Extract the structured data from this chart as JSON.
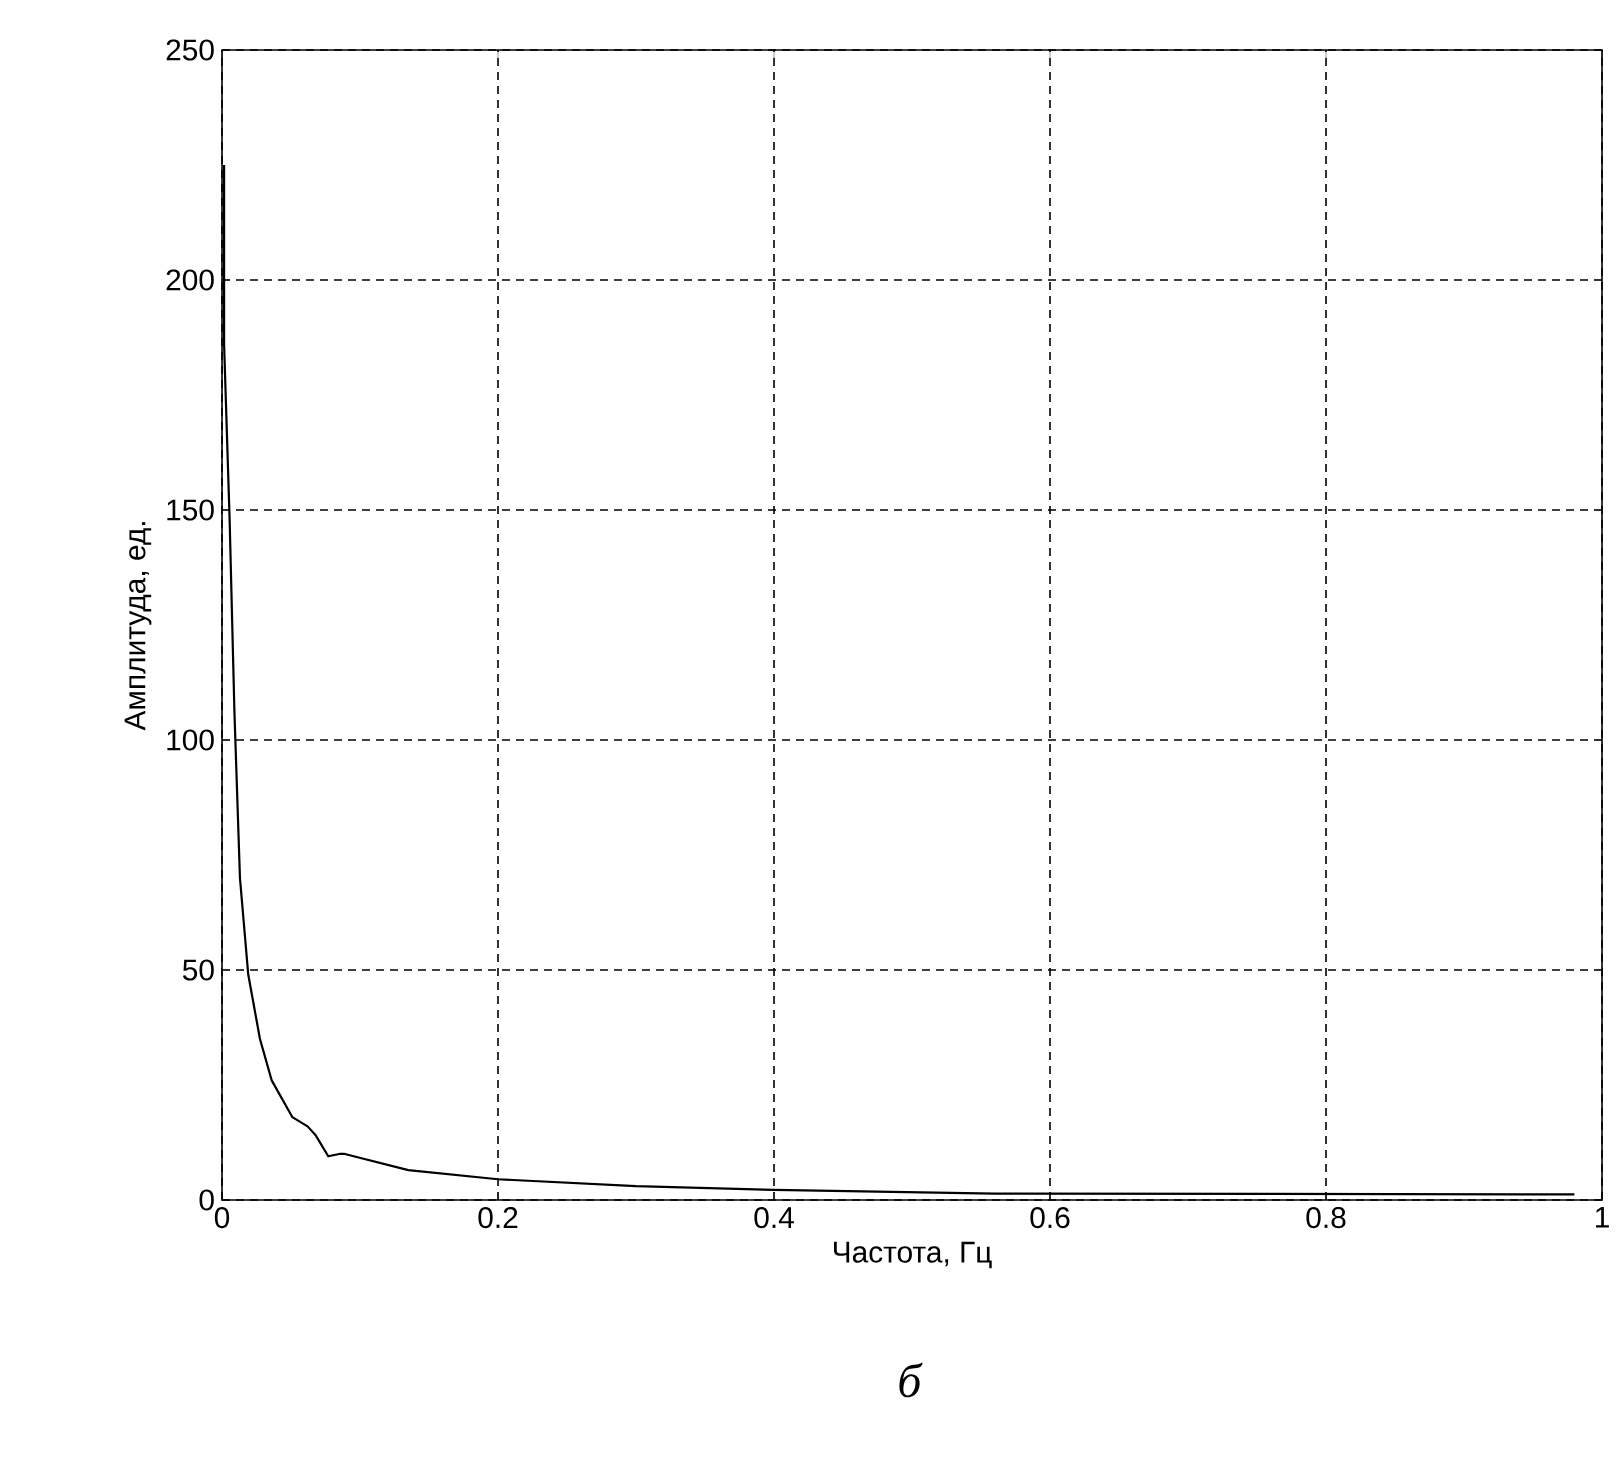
{
  "chart_data": {
    "type": "line",
    "xlabel": "Частота, Гц",
    "ylabel": "Амплитуда, ед.",
    "annotations": [
      "*б*"
    ],
    "x": [
      0.0015,
      0.0015,
      0.0055,
      0.009,
      0.013,
      0.019,
      0.0275,
      0.036,
      0.051,
      0.062,
      0.068,
      0.077,
      0.085,
      0.089,
      0.135,
      0.2,
      0.3,
      0.4,
      0.56,
      0.98
    ],
    "series": [
      {
        "color": "#000000",
        "values": [
          225,
          186,
          148,
          106,
          70,
          49,
          35,
          26,
          18,
          16,
          14,
          9.5,
          10,
          10,
          6.5,
          4.5,
          3,
          2.2,
          1.4,
          1.2
        ]
      }
    ],
    "xlim": [
      0,
      1
    ],
    "ylim": [
      0,
      250
    ],
    "xticks": [
      0,
      0.2,
      0.4,
      0.6,
      0.8,
      1
    ],
    "yticks": [
      0,
      50,
      100,
      150,
      200,
      250
    ],
    "grid": true,
    "line_style": "solid",
    "marker": "none"
  }
}
